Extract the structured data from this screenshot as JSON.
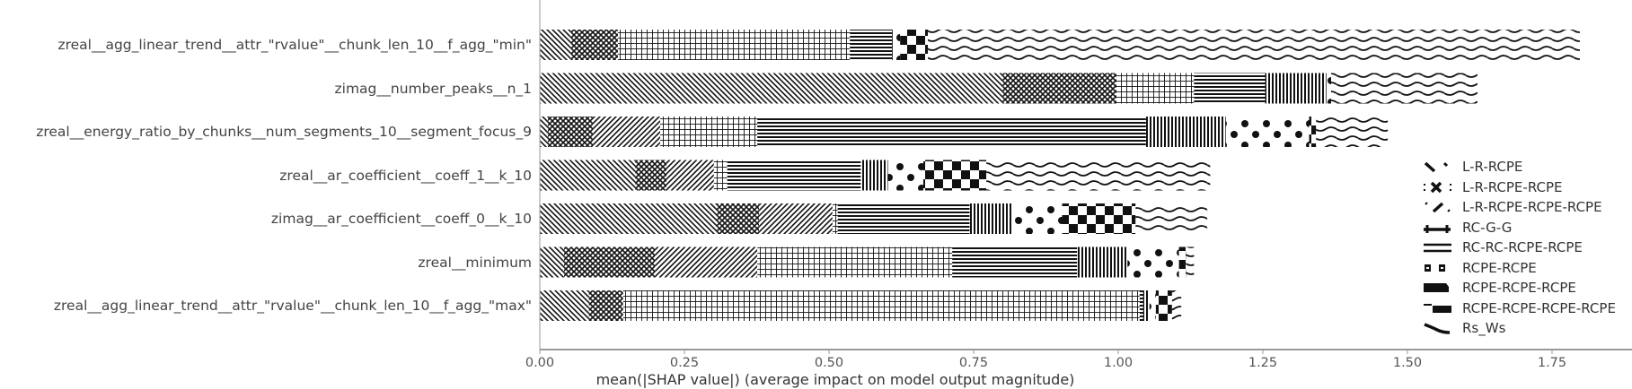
{
  "chart_data": {
    "type": "bar",
    "orientation": "horizontal",
    "stacked": true,
    "title": "",
    "xlabel": "mean(|SHAP value|) (average impact on model output magnitude)",
    "ylabel": "",
    "xlim": [
      0,
      1.93
    ],
    "x_ticks": [
      "0.00",
      "0.25",
      "0.50",
      "0.75",
      "1.00",
      "1.25",
      "1.50",
      "1.75"
    ],
    "x_tick_values": [
      0,
      0.25,
      0.5,
      0.75,
      1.0,
      1.25,
      1.5,
      1.75
    ],
    "grid": false,
    "legend_position": "right",
    "categories": [
      "zreal__agg_linear_trend__attr_\"rvalue\"__chunk_len_10__f_agg_\"min\"",
      "zimag__number_peaks__n_1",
      "zreal__energy_ratio_by_chunks__num_segments_10__segment_focus_9",
      "zreal__ar_coefficient__coeff_1__k_10",
      "zimag__ar_coefficient__coeff_0__k_10",
      "zreal__minimum",
      "zreal__agg_linear_trend__attr_\"rvalue\"__chunk_len_10__f_agg_\"max\""
    ],
    "series": [
      {
        "name": "L-R-RCPE",
        "pattern": "diag-back",
        "values": [
          0.054,
          0.8,
          0.014,
          0.165,
          0.306,
          0.042,
          0.085
        ]
      },
      {
        "name": "L-R-RCPE-RCPE",
        "pattern": "crosshatch",
        "values": [
          0.081,
          0.197,
          0.078,
          0.054,
          0.073,
          0.157,
          0.059
        ]
      },
      {
        "name": "L-R-RCPE-RCPE-RCPE",
        "pattern": "diag-fwd",
        "values": [
          0.0,
          0.0,
          0.116,
          0.082,
          0.127,
          0.177,
          0.0
        ]
      },
      {
        "name": "RC-G-G",
        "pattern": "grid",
        "values": [
          0.401,
          0.134,
          0.168,
          0.023,
          0.009,
          0.337,
          0.893
        ]
      },
      {
        "name": "RC-RC-RCPE-RCPE",
        "pattern": "horizontal",
        "values": [
          0.073,
          0.123,
          0.672,
          0.231,
          0.228,
          0.216,
          0.006
        ]
      },
      {
        "name": "RCPE-RCPE",
        "pattern": "vertical",
        "values": [
          0.003,
          0.106,
          0.138,
          0.047,
          0.075,
          0.087,
          0.011
        ]
      },
      {
        "name": "RCPE-RCPE-RCPE",
        "pattern": "dots",
        "values": [
          0.011,
          0.008,
          0.144,
          0.061,
          0.085,
          0.089,
          0.011
        ]
      },
      {
        "name": "RCPE-RCPE-RCPE-RCPE",
        "pattern": "checker",
        "values": [
          0.048,
          0.0,
          0.012,
          0.109,
          0.127,
          0.012,
          0.028
        ]
      },
      {
        "name": "Rs_Ws",
        "pattern": "waves",
        "values": [
          1.127,
          0.253,
          0.124,
          0.387,
          0.124,
          0.014,
          0.016
        ]
      }
    ],
    "totals": [
      1.798,
      1.62,
      1.468,
      1.158,
      1.155,
      1.13,
      1.109
    ]
  },
  "legend": {
    "items": [
      {
        "label": "L-R-RCPE",
        "icon": "diag-back-icon"
      },
      {
        "label": "L-R-RCPE-RCPE",
        "icon": "crosshatch-icon"
      },
      {
        "label": "L-R-RCPE-RCPE-RCPE",
        "icon": "diag-fwd-icon"
      },
      {
        "label": "RC-G-G",
        "icon": "grid-icon"
      },
      {
        "label": "RC-RC-RCPE-RCPE",
        "icon": "horizontal-lines-icon"
      },
      {
        "label": "RCPE-RCPE",
        "icon": "vertical-lines-icon"
      },
      {
        "label": "RCPE-RCPE-RCPE",
        "icon": "dots-icon"
      },
      {
        "label": "RCPE-RCPE-RCPE-RCPE",
        "icon": "checker-icon"
      },
      {
        "label": "Rs_Ws",
        "icon": "waves-icon"
      }
    ]
  },
  "colors": {
    "pattern_ink": "#111111",
    "axis": "#999999",
    "label_text": "#444444"
  }
}
